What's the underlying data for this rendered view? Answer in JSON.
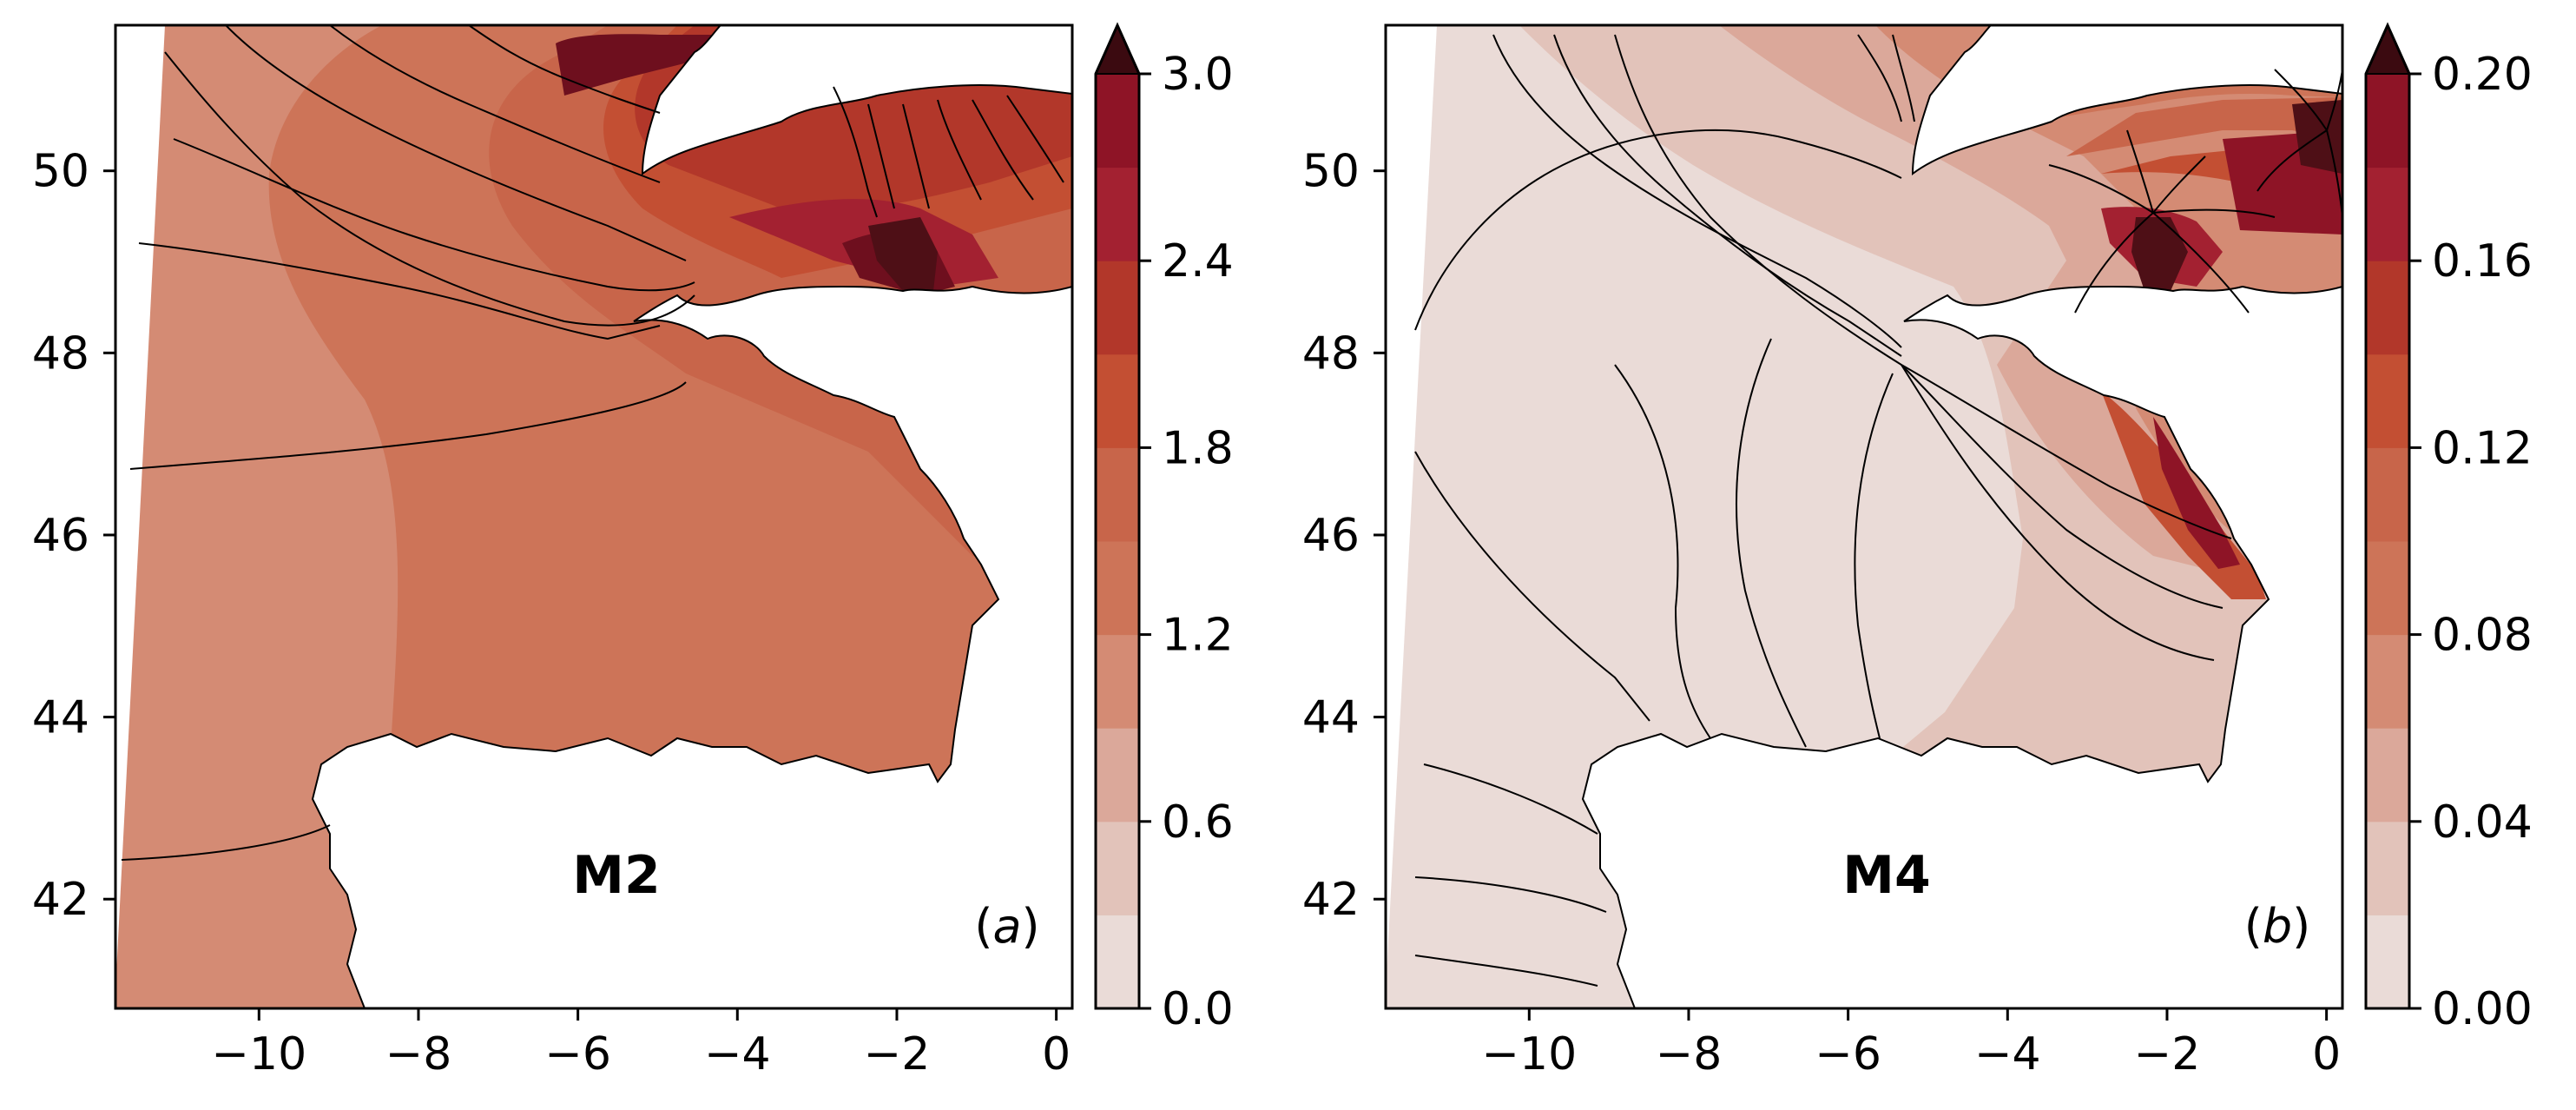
{
  "figure": {
    "panels": [
      {
        "id": "a",
        "title": "M2",
        "panel_tag": {
          "open": "(",
          "letter": "a",
          "close": ")"
        },
        "colorbar": {
          "min": 0.0,
          "max": 3.0,
          "step": 0.3,
          "extend": "max",
          "tick_values": [
            0.0,
            0.6,
            1.2,
            1.8,
            2.4,
            3.0
          ],
          "tick_labels": [
            "0.0",
            "0.6",
            "1.2",
            "1.8",
            "2.4",
            "3.0"
          ]
        }
      },
      {
        "id": "b",
        "title": "M4",
        "panel_tag": {
          "open": "(",
          "letter": "b",
          "close": ")"
        },
        "colorbar": {
          "min": 0.0,
          "max": 0.2,
          "step": 0.02,
          "extend": "max",
          "tick_values": [
            0.0,
            0.04,
            0.08,
            0.12,
            0.16,
            0.2
          ],
          "tick_labels": [
            "0.00",
            "0.04",
            "0.08",
            "0.12",
            "0.16",
            "0.20"
          ]
        }
      }
    ],
    "x_axis": {
      "range": [
        -11.8,
        0.2
      ],
      "ticks": [
        -10,
        -8,
        -6,
        -4,
        -2,
        0
      ],
      "tick_labels": [
        "−10",
        "−8",
        "−6",
        "−4",
        "−2",
        "0"
      ]
    },
    "y_axis": {
      "range": [
        40.8,
        51.6
      ],
      "ticks": [
        42,
        44,
        46,
        48,
        50
      ],
      "tick_labels": [
        "42",
        "44",
        "46",
        "48",
        "50"
      ]
    },
    "colors": {
      "levels": [
        "#eadbd7",
        "#e2c3ba",
        "#dba89a",
        "#d48b74",
        "#cd7458",
        "#c8654a",
        "#c34f33",
        "#b2372a",
        "#a32131",
        "#8e1426",
        "#6e0f1e",
        "#4e0f16"
      ],
      "extend": "#3b0a10",
      "coastline": "#000000",
      "land": "#ffffff"
    }
  },
  "chart_data": [
    {
      "type": "heatmap",
      "description_source": "filled contour map of tidal amplitude with phase contour lines",
      "title": "M2",
      "panel": "(a)",
      "xlim": [
        -11.8,
        0.2
      ],
      "ylim": [
        40.8,
        51.6
      ],
      "colorbar_range": [
        0.0,
        3.0
      ],
      "colorbar_ticks": [
        0.0,
        0.6,
        1.2,
        1.8,
        2.4,
        3.0
      ],
      "representative_values": [
        {
          "lon": -10.5,
          "lat": 46.0,
          "value": 1.05
        },
        {
          "lon": -6.0,
          "lat": 46.0,
          "value": 1.35
        },
        {
          "lon": -5.0,
          "lat": 50.5,
          "value": 1.65
        },
        {
          "lon": -2.0,
          "lat": 48.8,
          "value": 3.1
        },
        {
          "lon": -1.5,
          "lat": 46.2,
          "value": 1.6
        }
      ]
    },
    {
      "type": "heatmap",
      "description_source": "filled contour map of tidal amplitude with phase contour lines",
      "title": "M4",
      "panel": "(b)",
      "xlim": [
        -11.8,
        0.2
      ],
      "ylim": [
        40.8,
        51.6
      ],
      "colorbar_range": [
        0.0,
        0.2
      ],
      "colorbar_ticks": [
        0.0,
        0.04,
        0.08,
        0.12,
        0.16,
        0.2
      ],
      "representative_values": [
        {
          "lon": -10.0,
          "lat": 45.0,
          "value": 0.01
        },
        {
          "lon": -3.0,
          "lat": 44.2,
          "value": 0.03
        },
        {
          "lon": -2.0,
          "lat": 46.3,
          "value": 0.09
        },
        {
          "lon": -2.5,
          "lat": 48.9,
          "value": 0.17
        },
        {
          "lon": -0.5,
          "lat": 49.6,
          "value": 0.15
        }
      ]
    }
  ]
}
